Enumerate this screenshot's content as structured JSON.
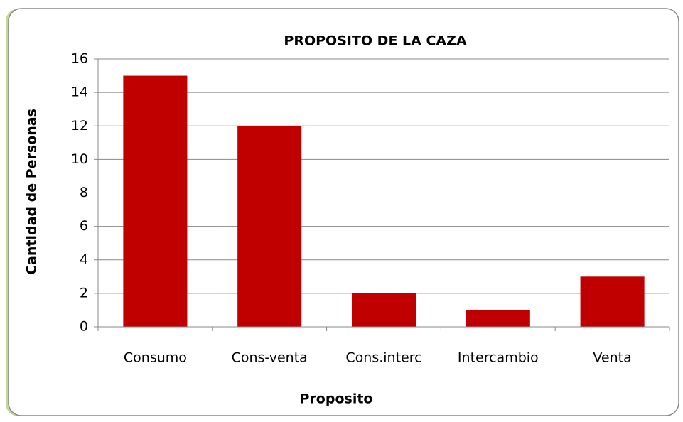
{
  "chart_data": {
    "type": "bar",
    "title": "PROPOSITO DE LA CAZA",
    "x_label": "Proposito",
    "y_label": "Cantidad  de Personas",
    "categories": [
      "Consumo",
      "Cons-venta",
      "Cons.interc",
      "Intercambio",
      "Venta"
    ],
    "values": [
      15,
      12,
      2,
      1,
      3
    ],
    "color": "#c00000",
    "ylim": [
      0,
      16
    ],
    "yticks": [
      0,
      2,
      4,
      6,
      8,
      10,
      12,
      14,
      16
    ],
    "grid": true
  }
}
